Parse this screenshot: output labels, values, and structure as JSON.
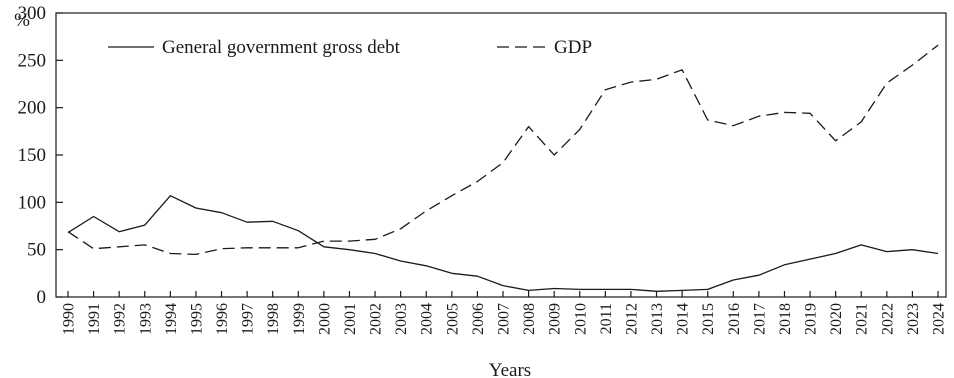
{
  "chart_data": {
    "type": "line",
    "title": "",
    "xlabel": "Years",
    "ylabel": "%",
    "ylim": [
      0,
      300
    ],
    "yticks": [
      "0",
      "50",
      "100",
      "150",
      "200",
      "250",
      "300"
    ],
    "x": [
      "1990",
      "1991",
      "1992",
      "1993",
      "1994",
      "1995",
      "1996",
      "1997",
      "1998",
      "1999",
      "2000",
      "2001",
      "2002",
      "2003",
      "2004",
      "2005",
      "2006",
      "2007",
      "2008",
      "2009",
      "2010",
      "2011",
      "2012",
      "2013",
      "2014",
      "2015",
      "2016",
      "2017",
      "2018",
      "2019",
      "2020",
      "2021",
      "2022",
      "2023",
      "2024"
    ],
    "series": [
      {
        "name": "General government gross debt",
        "style": "solid",
        "color": "#1a1a1a",
        "values": [
          68,
          85,
          69,
          76,
          107,
          94,
          89,
          79,
          80,
          70,
          53,
          50,
          46,
          38,
          33,
          25,
          22,
          12,
          7,
          9,
          8,
          8,
          8,
          6,
          7,
          8,
          18,
          23,
          34,
          40,
          46,
          55,
          48,
          50,
          46
        ]
      },
      {
        "name": "GDP",
        "style": "dashed",
        "color": "#1a1a1a",
        "values": [
          69,
          51,
          53,
          55,
          46,
          45,
          51,
          52,
          52,
          52,
          59,
          59,
          61,
          72,
          91,
          107,
          122,
          142,
          180,
          150,
          177,
          219,
          227,
          230,
          240,
          187,
          181,
          191,
          195,
          194,
          165,
          185,
          226,
          245,
          266
        ]
      }
    ],
    "legend_position": "top-left",
    "grid": false
  }
}
